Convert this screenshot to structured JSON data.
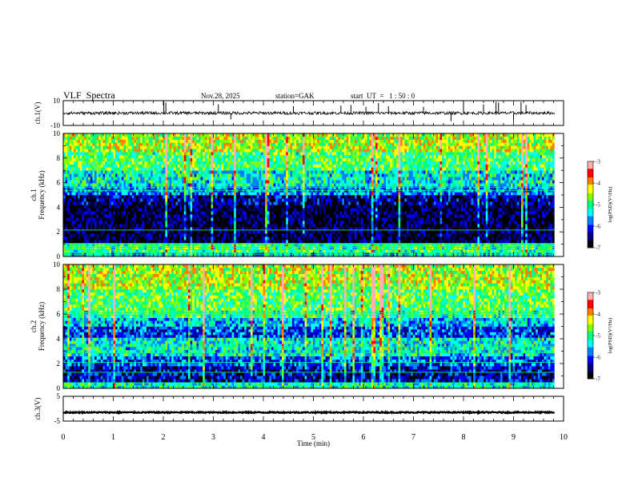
{
  "header": {
    "title": "VLF  Spectra",
    "date": "Nov.28, 2025",
    "station": "station=GAK",
    "start": "start  UT  =   1 : 50 : 0"
  },
  "chart_data": [
    {
      "type": "line",
      "name": "ch1-waveform",
      "ylabel": "ch.1(V)",
      "ylim": [
        -10,
        10
      ],
      "yticks": [
        {
          "v": 10,
          "label": "10"
        },
        {
          "v": -10,
          "label": "-10"
        }
      ],
      "baseline": 0,
      "noise": 1.2,
      "spikes": [
        {
          "t": 2.01,
          "v": 9.5
        },
        {
          "t": 2.05,
          "v": 8.5
        },
        {
          "t": 3.1,
          "v": 7.0
        },
        {
          "t": 4.6,
          "v": 5.5
        },
        {
          "t": 5.55,
          "v": 6.0
        },
        {
          "t": 5.75,
          "v": 6.5
        },
        {
          "t": 6.05,
          "v": 5.0
        },
        {
          "t": 6.3,
          "v": 8.0
        },
        {
          "t": 6.5,
          "v": 5.5
        },
        {
          "t": 7.2,
          "v": 5.0
        },
        {
          "t": 8.0,
          "v": 9.5
        },
        {
          "t": 8.4,
          "v": 7.0
        },
        {
          "t": 8.65,
          "v": 9.0
        },
        {
          "t": 8.7,
          "v": 8.5
        },
        {
          "t": 9.15,
          "v": 9.0
        },
        {
          "t": 9.25,
          "v": 6.5
        },
        {
          "t": 9.0,
          "v": -6.0
        },
        {
          "t": 7.75,
          "v": -6.5
        },
        {
          "t": 3.35,
          "v": -5.0
        }
      ]
    },
    {
      "type": "heatmap",
      "name": "ch1-spectrogram",
      "ylabel": "ch.1\nFrequency (kHz)",
      "ylim": [
        0,
        10
      ],
      "yticks": [
        0,
        2,
        4,
        6,
        8,
        10
      ],
      "colorbar": {
        "label": "log(PSD)(V²/Hz)",
        "range": [
          -7,
          -3
        ],
        "ticks": [
          -3,
          -4,
          -5,
          -6,
          -7
        ]
      },
      "bands": [
        {
          "f0": 0,
          "f1": 0.35,
          "level": -5.4
        },
        {
          "f0": 0.35,
          "f1": 1.1,
          "level": -5.0
        },
        {
          "f0": 1.1,
          "f1": 4.2,
          "level": -6.7
        },
        {
          "f0": 4.2,
          "f1": 5.0,
          "level": -6.4
        },
        {
          "f0": 5.0,
          "f1": 5.7,
          "level": -5.7
        },
        {
          "f0": 5.7,
          "f1": 7.0,
          "level": -5.3
        },
        {
          "f0": 7.0,
          "f1": 8.5,
          "level": -4.9
        },
        {
          "f0": 8.5,
          "f1": 10,
          "level": -4.5
        }
      ],
      "lines_khz": [
        0.15,
        0.3,
        0.55,
        0.75,
        0.95,
        1.05,
        2.15,
        5.35,
        5.6
      ]
    },
    {
      "type": "heatmap",
      "name": "ch2-spectrogram",
      "ylabel": "ch.2\nFrequency (kHz)",
      "ylim": [
        0,
        10
      ],
      "yticks": [
        0,
        2,
        4,
        6,
        8,
        10
      ],
      "colorbar": {
        "label": "log(PSD)(V²/Hz)",
        "range": [
          -7,
          -3
        ],
        "ticks": [
          -3,
          -4,
          -5,
          -6,
          -7
        ]
      },
      "bands": [
        {
          "f0": 0,
          "f1": 0.5,
          "level": -5.2
        },
        {
          "f0": 0.5,
          "f1": 1.8,
          "level": -6.3
        },
        {
          "f0": 1.8,
          "f1": 2.6,
          "level": -5.9
        },
        {
          "f0": 2.6,
          "f1": 4.1,
          "level": -5.3
        },
        {
          "f0": 4.1,
          "f1": 5.0,
          "level": -6.0
        },
        {
          "f0": 5.0,
          "f1": 5.7,
          "level": -5.5
        },
        {
          "f0": 5.7,
          "f1": 6.3,
          "level": -5.0
        },
        {
          "f0": 6.3,
          "f1": 8.0,
          "level": -4.8
        },
        {
          "f0": 8.0,
          "f1": 10,
          "level": -4.5
        }
      ],
      "lines_khz": [
        0.2,
        0.45,
        1.3,
        2.1,
        2.9,
        3.4,
        5.9,
        6.1
      ]
    },
    {
      "type": "line",
      "name": "ch3-waveform",
      "ylabel": "ch.3(V)",
      "ylim": [
        -5,
        5
      ],
      "yticks": [
        {
          "v": 5,
          "label": "5"
        },
        {
          "v": -5,
          "label": "-5"
        }
      ],
      "baseline": -1.5,
      "noise": 0.25,
      "spikes": []
    }
  ],
  "xaxis": {
    "label": "Time  (min)",
    "xlim": [
      0,
      10
    ],
    "ticks": [
      0,
      1,
      2,
      3,
      4,
      5,
      6,
      7,
      8,
      9,
      10
    ],
    "data_end": 9.82
  },
  "colors": {
    "scale": [
      "#000000",
      "#000080",
      "#0000ff",
      "#0080ff",
      "#00ffff",
      "#00ff80",
      "#80ff00",
      "#ffff00",
      "#ff8000",
      "#ff0000",
      "#ffb0b0",
      "#ffffff"
    ]
  }
}
